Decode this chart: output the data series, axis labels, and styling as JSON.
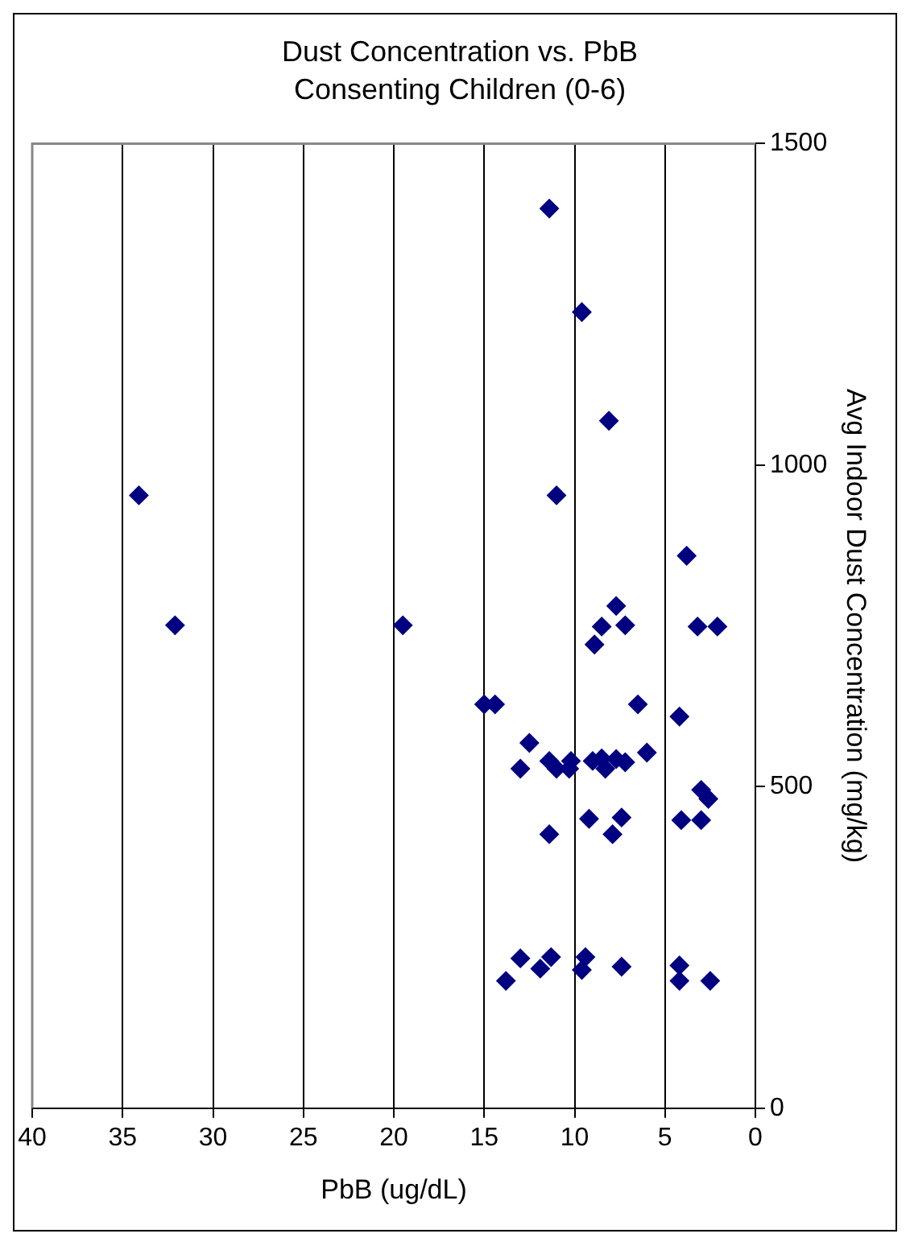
{
  "chart_data": {
    "type": "scatter",
    "title": "Dust Concentration vs. PbB",
    "subtitle": "Consenting Children (0-6)",
    "xlabel": "PbB (ug/dL)",
    "ylabel": "Avg Indoor Dust Concentration (mg/kg)",
    "xlim": [
      40,
      0
    ],
    "xticks": [
      40,
      35,
      30,
      25,
      20,
      15,
      10,
      5,
      0
    ],
    "ylim": [
      0,
      1500
    ],
    "yticks": [
      0,
      500,
      1000,
      1500
    ],
    "grid": "x",
    "legend": false,
    "marker": "diamond",
    "series": [
      {
        "color": "#000080",
        "values": [
          1399,
          1238,
          1069,
          953,
          953,
          859,
          781,
          751,
          751,
          749,
          751,
          749,
          749,
          721,
          628,
          628,
          628,
          609,
          568,
          553,
          540,
          540,
          540,
          544,
          543,
          538,
          528,
          528,
          528,
          528,
          495,
          481,
          450,
          452,
          448,
          448,
          426,
          426,
          233,
          235,
          217,
          235,
          215,
          220,
          222,
          198,
          198,
          198
        ],
        "x": [
          11.4,
          9.6,
          8.1,
          34.1,
          11.0,
          3.8,
          7.7,
          32.1,
          19.5,
          8.5,
          7.2,
          3.2,
          2.1,
          8.9,
          15.0,
          14.4,
          6.5,
          4.2,
          12.5,
          6.0,
          11.4,
          10.2,
          9.0,
          8.5,
          7.7,
          7.2,
          11.0,
          10.3,
          8.3,
          13.0,
          3.0,
          2.6,
          9.2,
          7.4,
          4.1,
          3.0,
          11.4,
          7.9,
          13.0,
          11.3,
          11.9,
          9.4,
          9.6,
          7.4,
          4.2,
          4.2,
          13.8,
          2.5
        ]
      }
    ]
  }
}
